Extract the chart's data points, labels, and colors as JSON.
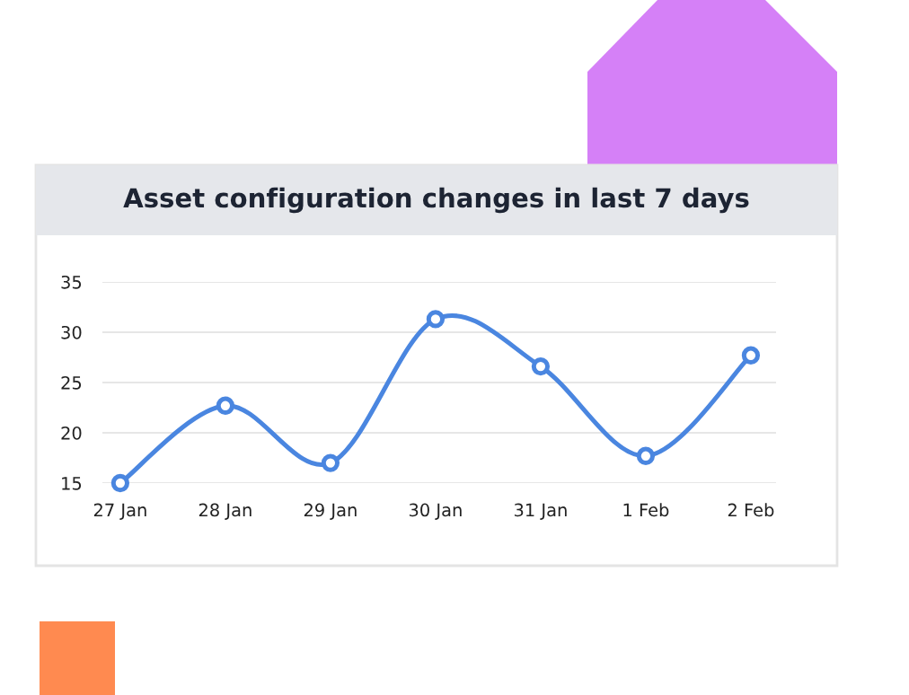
{
  "chart_data": {
    "type": "line",
    "title": "Asset configuration changes in last 7 days",
    "categories": [
      "27 Jan",
      "28 Jan",
      "29 Jan",
      "30 Jan",
      "31 Jan",
      "1 Feb",
      "2 Feb"
    ],
    "series": [
      {
        "color": "#4a86e0",
        "values": [
          15,
          22.7,
          17,
          31.3,
          26.6,
          17.7,
          27.7
        ]
      }
    ],
    "ylim": [
      15,
      35
    ],
    "yticks": [
      15,
      20,
      25,
      30,
      35
    ],
    "grid": "y",
    "marker": "circle",
    "line_style": "solid",
    "legend": false
  }
}
